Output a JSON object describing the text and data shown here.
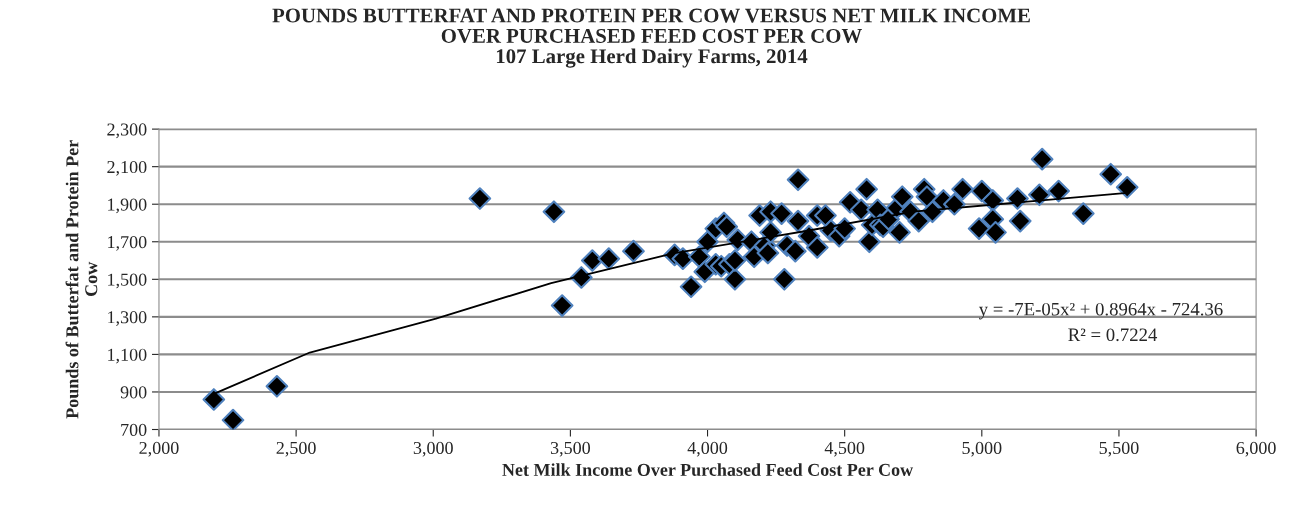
{
  "chart_data": {
    "type": "scatter",
    "title": "POUNDS BUTTERFAT AND PROTEIN PER COW VERSUS NET MILK INCOME\nOVER PURCHASED FEED COST PER COW\n107 Large Herd Dairy Farms, 2014",
    "xlabel": "Net Milk Income Over Purchased Feed Cost Per Cow",
    "ylabel": "Pounds of Butterfat and Protein Per\nCow",
    "marker": "diamond",
    "grid": "y",
    "legend": false,
    "xlim": [
      2000,
      6000
    ],
    "ylim": [
      700,
      2300
    ],
    "xticks": [
      {
        "value": 2000,
        "label": "2,000"
      },
      {
        "value": 2500,
        "label": "2,500"
      },
      {
        "value": 3000,
        "label": "3,000"
      },
      {
        "value": 3500,
        "label": "3,500"
      },
      {
        "value": 4000,
        "label": "4,000"
      },
      {
        "value": 4500,
        "label": "4,500"
      },
      {
        "value": 5000,
        "label": "5,000"
      },
      {
        "value": 5500,
        "label": "5,500"
      },
      {
        "value": 6000,
        "label": "6,000"
      }
    ],
    "yticks": [
      {
        "value": 700,
        "label": "700"
      },
      {
        "value": 900,
        "label": "900"
      },
      {
        "value": 1100,
        "label": "1,100"
      },
      {
        "value": 1300,
        "label": "1,300"
      },
      {
        "value": 1500,
        "label": "1,500"
      },
      {
        "value": 1700,
        "label": "1,700"
      },
      {
        "value": 1900,
        "label": "1,900"
      },
      {
        "value": 2100,
        "label": "2,100"
      },
      {
        "value": 2300,
        "label": "2,300"
      }
    ],
    "series": [
      {
        "color": "#000000",
        "x": [
          2200,
          2270,
          2430,
          3170,
          3440,
          3470,
          3540,
          3580,
          3640,
          3730,
          3880,
          3910,
          3940,
          3970,
          3990,
          4000,
          4030,
          4030,
          4060,
          4070,
          4050,
          4080,
          4100,
          4100,
          4110,
          4160,
          4170,
          4190,
          4210,
          4230,
          4230,
          4220,
          4270,
          4280,
          4290,
          4320,
          4330,
          4330,
          4370,
          4400,
          4400,
          4430,
          4450,
          4480,
          4500,
          4520,
          4560,
          4580,
          4590,
          4600,
          4620,
          4630,
          4640,
          4660,
          4690,
          4710,
          4700,
          4740,
          4770,
          4790,
          4800,
          4820,
          4860,
          4900,
          4930,
          5000,
          4990,
          5040,
          5040,
          5050,
          5130,
          5140,
          5210,
          5220,
          5280,
          5370,
          5470,
          5530
        ],
        "values": [
          860,
          750,
          930,
          1930,
          1860,
          1360,
          1510,
          1600,
          1610,
          1650,
          1630,
          1610,
          1460,
          1620,
          1540,
          1700,
          1580,
          1770,
          1800,
          1780,
          1570,
          1580,
          1500,
          1600,
          1710,
          1700,
          1620,
          1840,
          1680,
          1860,
          1750,
          1640,
          1850,
          1500,
          1680,
          1650,
          1810,
          2030,
          1730,
          1840,
          1670,
          1840,
          1760,
          1730,
          1770,
          1910,
          1870,
          1980,
          1700,
          1790,
          1870,
          1790,
          1780,
          1820,
          1880,
          1940,
          1750,
          1860,
          1810,
          1980,
          1940,
          1860,
          1920,
          1900,
          1980,
          1970,
          1770,
          1920,
          1820,
          1750,
          1930,
          1810,
          1950,
          2140,
          1970,
          1850,
          2060,
          1990
        ]
      },
      {
        "type": "line",
        "color": "#000000",
        "marker": "none",
        "x": [
          2200,
          2550,
          3010,
          3430,
          3880,
          4370,
          4750,
          5530
        ],
        "values": [
          890,
          1110,
          1290,
          1480,
          1640,
          1760,
          1860,
          1960
        ]
      }
    ],
    "annotations": [
      "y = -7E-05x² + 0.8964x - 724.36",
      "R² = 0.7224"
    ]
  }
}
